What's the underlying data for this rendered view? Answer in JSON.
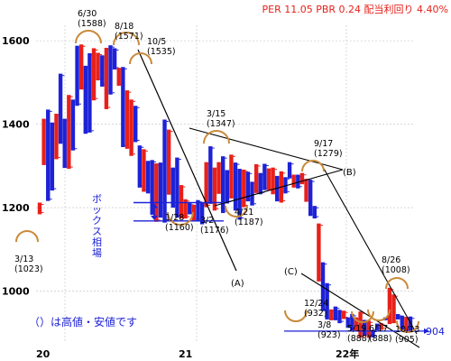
{
  "header": {
    "text": "PER 11.05 PBR 0.24 配当利回り 4.40%"
  },
  "footer_note": "（）は高値・安値です",
  "box_label": "ボックス相場",
  "chart_data": {
    "type": "candlestick",
    "ylim": [
      880,
      1650
    ],
    "y_ticks": [
      1000,
      1200,
      1400,
      1600
    ],
    "x_labels": [
      "20",
      "21",
      "22年"
    ],
    "grid": true,
    "colors": {
      "up": "#e8201a",
      "down": "#1d22d6",
      "accent": "#c98a3a",
      "line": "#000000",
      "support": "#1d22d6",
      "header": "#e8201a"
    },
    "annotations": [
      {
        "lines": [
          "6/30",
          "(1588)"
        ]
      },
      {
        "lines": [
          "8/18",
          "(1571)"
        ]
      },
      {
        "lines": [
          "10/5",
          "(1535)"
        ]
      },
      {
        "lines": [
          "3/15",
          "(1347)"
        ]
      },
      {
        "lines": [
          "9/17",
          "(1279)"
        ]
      },
      {
        "lines": [
          "1/28",
          "(1160)"
        ]
      },
      {
        "lines": [
          "3/2",
          "(1176)"
        ]
      },
      {
        "lines": [
          "4/21",
          "(1187)"
        ]
      },
      {
        "lines": [
          "3/13",
          "(1023)"
        ]
      },
      {
        "lines": [
          "12/24",
          "(932)"
        ]
      },
      {
        "lines": [
          "3/8",
          "(923)"
        ]
      },
      {
        "lines": [
          "5/19",
          "(888)"
        ]
      },
      {
        "lines": [
          "6/17",
          "(888)"
        ]
      },
      {
        "lines": [
          "8/26",
          "(1008)"
        ]
      },
      {
        "lines": [
          "10/13",
          "(905)"
        ]
      }
    ],
    "trendline_labels": [
      "(A)",
      "(B)",
      "(C)"
    ],
    "support_value": "904",
    "weekly_bars": [
      [
        1184,
        1212
      ],
      [
        1302,
        1413
      ],
      [
        1216,
        1435
      ],
      [
        1241,
        1404
      ],
      [
        1316,
        1425
      ],
      [
        1353,
        1521
      ],
      [
        1295,
        1413
      ],
      [
        1293,
        1470
      ],
      [
        1337,
        1459
      ],
      [
        1444,
        1588
      ],
      [
        1483,
        1591
      ],
      [
        1377,
        1540
      ],
      [
        1380,
        1570
      ],
      [
        1457,
        1582
      ],
      [
        1505,
        1571
      ],
      [
        1490,
        1565
      ],
      [
        1436,
        1583
      ],
      [
        1471,
        1589
      ],
      [
        1531,
        1582
      ],
      [
        1492,
        1535
      ],
      [
        1345,
        1537
      ],
      [
        1341,
        1481
      ],
      [
        1324,
        1459
      ],
      [
        1357,
        1444
      ],
      [
        1248,
        1349
      ],
      [
        1238,
        1340
      ],
      [
        1234,
        1312
      ],
      [
        1183,
        1314
      ],
      [
        1166,
        1306
      ],
      [
        1176,
        1308
      ],
      [
        1164,
        1411
      ],
      [
        1231,
        1387
      ],
      [
        1200,
        1296
      ],
      [
        1176,
        1320
      ],
      [
        1174,
        1254
      ],
      [
        1174,
        1220
      ],
      [
        1184,
        1211
      ],
      [
        1169,
        1207
      ],
      [
        1168,
        1218
      ],
      [
        1160,
        1212
      ],
      [
        1201,
        1309
      ],
      [
        1209,
        1347
      ],
      [
        1193,
        1296
      ],
      [
        1233,
        1309
      ],
      [
        1187,
        1323
      ],
      [
        1210,
        1290
      ],
      [
        1222,
        1327
      ],
      [
        1193,
        1308
      ],
      [
        1171,
        1293
      ],
      [
        1201,
        1291
      ],
      [
        1215,
        1286
      ],
      [
        1205,
        1262
      ],
      [
        1235,
        1304
      ],
      [
        1232,
        1283
      ],
      [
        1242,
        1305
      ],
      [
        1242,
        1294
      ],
      [
        1232,
        1296
      ],
      [
        1215,
        1276
      ],
      [
        1212,
        1287
      ],
      [
        1234,
        1273
      ],
      [
        1270,
        1309
      ],
      [
        1248,
        1279
      ],
      [
        1246,
        1279
      ],
      [
        1256,
        1283
      ],
      [
        1214,
        1269
      ],
      [
        1180,
        1267
      ],
      [
        1174,
        1204
      ],
      [
        1023,
        1162
      ],
      [
        952,
        1069
      ],
      [
        932,
        1019
      ],
      [
        930,
        956
      ],
      [
        930,
        963
      ],
      [
        923,
        955
      ],
      [
        933,
        953
      ],
      [
        912,
        937
      ],
      [
        906,
        945
      ],
      [
        905,
        937
      ],
      [
        888,
        951
      ],
      [
        893,
        931
      ],
      [
        888,
        929
      ],
      [
        889,
        907
      ],
      [
        906,
        922
      ],
      [
        907,
        923
      ],
      [
        930,
        937
      ],
      [
        921,
        1008
      ],
      [
        923,
        992
      ],
      [
        932,
        945
      ],
      [
        907,
        941
      ],
      [
        904,
        938
      ],
      [
        905,
        939
      ]
    ]
  }
}
